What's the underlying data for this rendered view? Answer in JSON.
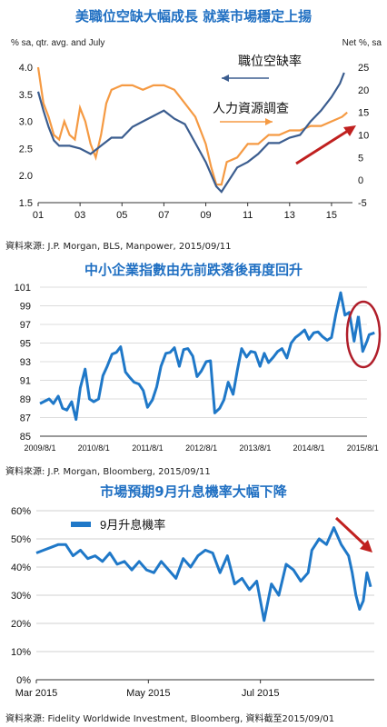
{
  "chart_data": [
    {
      "type": "line",
      "title": "美職位空缺大幅成長  就業市場穩定上揚",
      "ylabel_left": "% sa, qtr. avg. and July",
      "ylabel_right": "Net %, sa",
      "source": "資料來源: J.P. Morgan, BLS, Manpower, 2015/09/11",
      "x_ticks": [
        "01",
        "03",
        "05",
        "07",
        "09",
        "11",
        "13",
        "15"
      ],
      "ylim_left": [
        1.5,
        4.0
      ],
      "ylim_right": [
        -5,
        25
      ],
      "yticks_left": [
        "4.0",
        "3.5",
        "3.0",
        "2.5",
        "2.0",
        "1.5"
      ],
      "yticks_right": [
        "25",
        "20",
        "15",
        "10",
        "5",
        "0",
        "-5"
      ],
      "x_range": [
        2001,
        2016
      ],
      "series": [
        {
          "name": "職位空缺率",
          "axis": "left",
          "color": "#3b5d8f",
          "x": [
            2001.0,
            2001.25,
            2001.5,
            2001.75,
            2002.0,
            2002.5,
            2003.0,
            2003.5,
            2004.0,
            2004.5,
            2005.0,
            2005.5,
            2006.0,
            2006.5,
            2007.0,
            2007.5,
            2008.0,
            2008.5,
            2009.0,
            2009.5,
            2009.75,
            2010.0,
            2010.5,
            2011.0,
            2011.5,
            2012.0,
            2012.5,
            2013.0,
            2013.5,
            2014.0,
            2014.5,
            2015.0,
            2015.4,
            2015.6
          ],
          "y": [
            3.55,
            3.2,
            2.9,
            2.65,
            2.55,
            2.55,
            2.5,
            2.4,
            2.55,
            2.7,
            2.7,
            2.9,
            3.0,
            3.1,
            3.2,
            3.05,
            2.95,
            2.6,
            2.25,
            1.8,
            1.7,
            1.85,
            2.15,
            2.25,
            2.4,
            2.6,
            2.6,
            2.7,
            2.75,
            3.0,
            3.2,
            3.45,
            3.7,
            3.9
          ]
        },
        {
          "name": "人力資源調查",
          "axis": "right",
          "color": "#f59a43",
          "x": [
            2001.0,
            2001.25,
            2001.5,
            2001.75,
            2002.0,
            2002.25,
            2002.5,
            2002.75,
            2003.0,
            2003.25,
            2003.5,
            2003.75,
            2004.0,
            2004.25,
            2004.5,
            2005.0,
            2005.5,
            2006.0,
            2006.5,
            2007.0,
            2007.5,
            2008.0,
            2008.5,
            2009.0,
            2009.25,
            2009.5,
            2009.75,
            2010.0,
            2010.5,
            2011.0,
            2011.5,
            2012.0,
            2012.5,
            2013.0,
            2013.5,
            2014.0,
            2014.5,
            2015.0,
            2015.5,
            2015.75
          ],
          "y": [
            25,
            17,
            14,
            10,
            9,
            13,
            10,
            9,
            16,
            13,
            8,
            5,
            10,
            17,
            20,
            21,
            21,
            20,
            21,
            21,
            20,
            17,
            14,
            8,
            3,
            -1,
            -1,
            4,
            5,
            8,
            8,
            10,
            10,
            11,
            11,
            12,
            12,
            13,
            14,
            15
          ]
        }
      ],
      "annotations": [
        "職位空缺率",
        "人力資源調查"
      ]
    },
    {
      "type": "line",
      "title": "中小企業指數由先前跌落後再度回升",
      "source": "資料來源: J.P. Morgan, Bloomberg, 2015/09/11",
      "ylim": [
        85,
        101
      ],
      "yticks": [
        "101",
        "99",
        "97",
        "95",
        "93",
        "91",
        "89",
        "87",
        "85"
      ],
      "x_ticks": [
        "2009/8/1",
        "2010/8/1",
        "2011/8/1",
        "2012/8/1",
        "2013/8/1",
        "2014/8/1",
        "2015/8/1"
      ],
      "x_range": [
        2009.58,
        2015.66
      ],
      "series": [
        {
          "name": "",
          "color": "#1f78c8",
          "x": [
            2009.58,
            2009.75,
            2009.83,
            2009.92,
            2010.0,
            2010.08,
            2010.17,
            2010.25,
            2010.33,
            2010.42,
            2010.5,
            2010.58,
            2010.67,
            2010.75,
            2010.83,
            2010.92,
            2011.0,
            2011.08,
            2011.17,
            2011.25,
            2011.33,
            2011.42,
            2011.5,
            2011.58,
            2011.67,
            2011.75,
            2011.83,
            2011.92,
            2012.0,
            2012.08,
            2012.17,
            2012.25,
            2012.33,
            2012.42,
            2012.5,
            2012.58,
            2012.67,
            2012.75,
            2012.83,
            2012.92,
            2013.0,
            2013.08,
            2013.17,
            2013.25,
            2013.33,
            2013.42,
            2013.5,
            2013.58,
            2013.67,
            2013.75,
            2013.83,
            2013.92,
            2014.0,
            2014.08,
            2014.17,
            2014.25,
            2014.33,
            2014.42,
            2014.5,
            2014.58,
            2014.67,
            2014.75,
            2014.83,
            2014.92,
            2015.0,
            2015.08,
            2015.17,
            2015.25,
            2015.33,
            2015.42,
            2015.5
          ],
          "y": [
            88.5,
            89,
            88.5,
            89.3,
            88.0,
            87.8,
            88.7,
            86.8,
            90.2,
            92.2,
            89.0,
            88.7,
            89.0,
            91.5,
            92.5,
            93.8,
            94.0,
            94.6,
            91.9,
            91.3,
            90.8,
            90.6,
            89.9,
            88.1,
            88.9,
            90.3,
            92.5,
            93.9,
            94.0,
            94.5,
            92.5,
            94.3,
            94.4,
            93.6,
            91.4,
            92.0,
            93.0,
            93.1,
            87.5,
            88.0,
            88.9,
            90.8,
            89.5,
            92.1,
            94.4,
            93.5,
            94.1,
            94.0,
            92.5,
            93.9,
            92.9,
            93.5,
            94.1,
            94.4,
            93.4,
            95.0,
            95.6,
            96.0,
            96.4,
            95.4,
            96.1,
            96.2,
            95.7,
            95.3,
            95.6,
            98.1,
            100.4,
            98.0,
            98.3,
            95.2,
            97.9
          ]
        },
        {
          "name": "",
          "color": "#1f78c8",
          "x": [
            2015.5,
            2015.58,
            2015.66,
            2015.7,
            2015.8
          ],
          "y": [
            97.9,
            94.1,
            95.2,
            95.9,
            96.1
          ]
        }
      ]
    },
    {
      "type": "line",
      "title": "市場預期9月升息機率大幅下降",
      "source": "資料來源: Fidelity Worldwide Investment, Bloomberg, 資料截至2015/09/01",
      "legend": "9月升息機率",
      "ylim": [
        0,
        60
      ],
      "yticks": [
        "60%",
        "50%",
        "40%",
        "30%",
        "20%",
        "10%",
        "0%"
      ],
      "x_ticks": [
        "Mar 2015",
        "May 2015",
        "Jul 2015"
      ],
      "x_days_range": [
        0,
        184
      ],
      "series": [
        {
          "name": "9月升息機率",
          "color": "#1f78c8",
          "x": [
            0,
            4,
            8,
            12,
            16,
            20,
            24,
            28,
            32,
            36,
            40,
            44,
            48,
            52,
            56,
            60,
            64,
            68,
            72,
            76,
            80,
            84,
            88,
            92,
            96,
            100,
            104,
            108,
            112,
            116,
            120,
            124,
            128,
            132,
            136,
            140,
            144,
            148,
            150,
            154,
            158,
            162,
            166,
            170,
            172,
            174,
            176,
            178,
            180,
            182
          ],
          "y": [
            45,
            46,
            47,
            48,
            48,
            44,
            46,
            43,
            44,
            42,
            45,
            41,
            42,
            39,
            42,
            39,
            38,
            42,
            39,
            36,
            43,
            40,
            44,
            46,
            45,
            38,
            44,
            34,
            36,
            32,
            35,
            21,
            34,
            30,
            41,
            39,
            35,
            38,
            46,
            50,
            48,
            54,
            48,
            44,
            38,
            30,
            25,
            28,
            38,
            33
          ]
        }
      ]
    }
  ]
}
